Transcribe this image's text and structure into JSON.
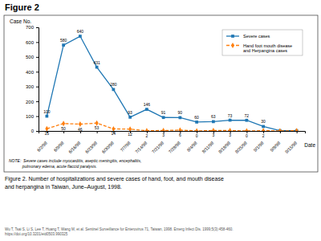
{
  "chart_data": {
    "type": "line",
    "title": "Figure 2",
    "xlabel": "Date",
    "ylabel": "Case No.",
    "categories": [
      "6/2/98",
      "6/9/98",
      "6/16/98",
      "6/23/98",
      "6/30/98",
      "7/7/98",
      "7/14/98",
      "7/21/98",
      "7/28/98",
      "8/4/98",
      "8/11/98",
      "8/18/98",
      "8/25/98",
      "9/1/98",
      "9/8/98",
      "9/15/98"
    ],
    "series": [
      {
        "name": "Severe cases",
        "values": [
          100,
          580,
          640,
          431,
          280,
          93,
          146,
          91,
          90,
          60,
          63,
          73,
          72,
          30,
          2,
          2
        ],
        "value_labels": [
          "100",
          "580",
          "640",
          "431",
          "280",
          "93",
          "146",
          "91",
          "90",
          "60",
          "63",
          "73",
          "72",
          "30",
          null,
          null
        ],
        "marker": "square",
        "line_style": "solid"
      },
      {
        "name": "Hand foot mouth disease\nand Herpangina cases",
        "values": [
          15,
          50,
          46,
          53,
          14,
          12,
          2,
          3,
          6,
          0,
          3,
          3,
          0,
          2,
          0,
          2
        ],
        "value_labels": [
          "15",
          "50",
          "46",
          "53",
          "14",
          "12",
          "2",
          "3",
          "6",
          "0",
          "3",
          "3",
          "0",
          "2",
          null,
          null
        ],
        "marker": "diamond",
        "line_style": "dashed"
      }
    ],
    "ylim": [
      0,
      700
    ],
    "yticks": [
      0,
      100,
      200,
      300,
      400,
      500,
      600,
      700
    ],
    "grid": false,
    "legend": "upper right",
    "data_labels": true,
    "annotations": [
      "NOTE:  Severe cases include myocarditis, aseptic meningitis, encephalitis,\n            pulmonary edema, acute flaccid paralysis.",
      "Figure 2. Number of hospitalizations and severe cases of hand, foot, and mouth disease\nand herpangina in Taiwan, June–August, 1998.",
      "Wu T, Tsai S, Li S, Lee T, Huang T, Wang M, et al. Sentinel Surveillance for Enterovirus 71, Taiwan, 1998. Emerg Infect Dis. 1999;5(3):458-460.\nhttps://doi.org/10.3201/eid0503.990325"
    ]
  }
}
